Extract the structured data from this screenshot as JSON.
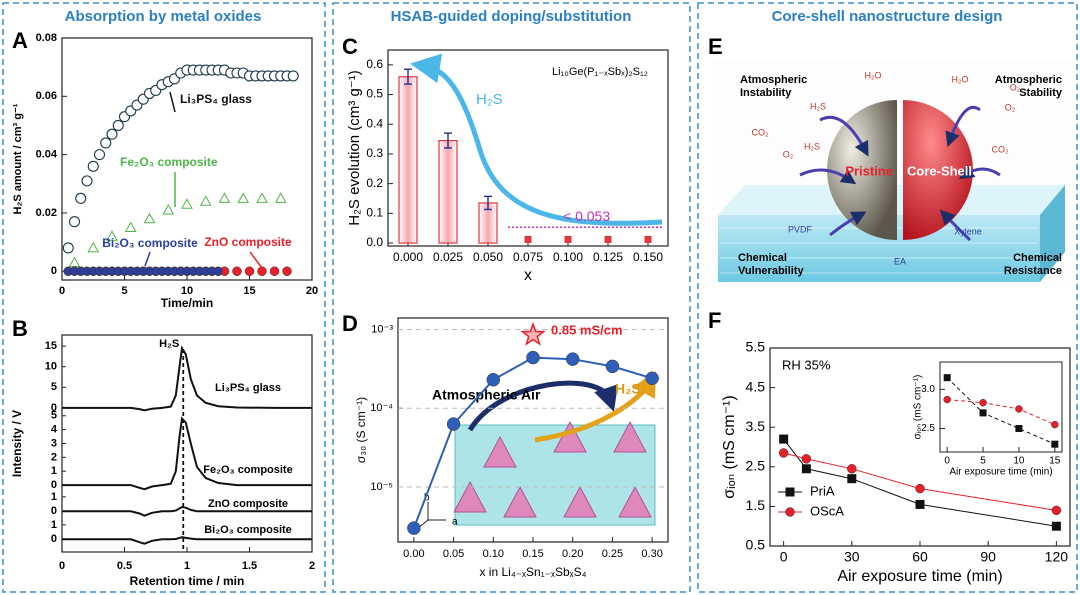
{
  "headers": [
    "Absorption by metal oxides",
    "HSAB-guided doping/substitution",
    "Core-shell nanostructure design"
  ],
  "chart_data": [
    {
      "type": "scatter",
      "label": "A",
      "xlabel": "Time/min",
      "ylabel": "H₂S amount / cm³ g⁻¹",
      "xlim": [
        0,
        20
      ],
      "ylim": [
        -0.003,
        0.08
      ],
      "xticks": [
        0,
        5,
        10,
        15,
        20
      ],
      "yticks": [
        0,
        0.02,
        0.04,
        0.06,
        0.08
      ],
      "series": [
        {
          "name": "Li₃PS₄ glass",
          "color": "#1d3b4a",
          "marker": "circle-open",
          "x": [
            0.5,
            1,
            1.5,
            2,
            2.5,
            3,
            3.5,
            4,
            4.5,
            5,
            5.5,
            6,
            6.5,
            7,
            7.5,
            8,
            8.5,
            9,
            9.5,
            10,
            10.5,
            11,
            11.5,
            12,
            12.5,
            13,
            13.5,
            14,
            14.5,
            15,
            15.5,
            16,
            16.5,
            17,
            17.5,
            18,
            18.5
          ],
          "values": [
            0.008,
            0.017,
            0.025,
            0.031,
            0.036,
            0.04,
            0.044,
            0.047,
            0.05,
            0.053,
            0.055,
            0.057,
            0.059,
            0.061,
            0.062,
            0.064,
            0.065,
            0.066,
            0.068,
            0.069,
            0.069,
            0.069,
            0.069,
            0.069,
            0.069,
            0.069,
            0.068,
            0.068,
            0.068,
            0.067,
            0.067,
            0.067,
            0.067,
            0.067,
            0.067,
            0.067,
            0.067
          ]
        },
        {
          "name": "Fe₂O₃ composite",
          "color": "#4fb548",
          "marker": "triangle-open",
          "x": [
            1,
            2.5,
            4,
            5.5,
            7,
            8.5,
            10,
            11.5,
            13,
            14.5,
            16,
            17.5
          ],
          "values": [
            0.003,
            0.008,
            0.012,
            0.015,
            0.018,
            0.021,
            0.023,
            0.024,
            0.025,
            0.025,
            0.025,
            0.025
          ]
        },
        {
          "name": "ZnO composite",
          "color": "#e8202a",
          "marker": "circle",
          "x": [
            0.5,
            1,
            1.5,
            2,
            2.5,
            3,
            3.5,
            4,
            4.5,
            5,
            5.5,
            6,
            6.5,
            7,
            7.5,
            8,
            8.5,
            9,
            9.5,
            10,
            10.5,
            11,
            11.5,
            12,
            12.5,
            13,
            14,
            15,
            16,
            17,
            18
          ],
          "values": [
            0,
            0,
            0,
            0,
            0,
            0,
            0,
            0,
            0,
            0,
            0,
            0,
            0,
            0,
            0,
            0,
            0,
            0,
            0,
            0,
            0,
            0,
            0,
            0,
            0,
            0,
            0,
            0,
            0,
            0,
            0
          ]
        },
        {
          "name": "Bi₂O₃ composite",
          "color": "#2b3f9e",
          "marker": "circle",
          "x": [
            0.5,
            1,
            1.5,
            2,
            2.5,
            3,
            3.5,
            4,
            4.5,
            5,
            5.5,
            6,
            6.5,
            7,
            7.5,
            8,
            8.5,
            9,
            9.5,
            10,
            10.5,
            11,
            11.5,
            12,
            12.5
          ],
          "values": [
            0,
            0,
            0,
            0,
            0,
            0,
            0,
            0,
            0,
            0,
            0,
            0,
            0,
            0,
            0,
            0,
            0,
            0,
            0,
            0,
            0,
            0,
            0,
            0,
            0
          ]
        }
      ]
    },
    {
      "type": "traces",
      "label": "B",
      "xlabel": "Retention time / min",
      "ylabel": "Intensity / V",
      "xlim": [
        0,
        2
      ],
      "xticks": [
        0,
        0.5,
        1,
        1.5,
        2
      ],
      "marker_line": {
        "value": 0.97,
        "label": "H₂S"
      },
      "x": [
        0,
        0.3,
        0.55,
        0.62,
        0.66,
        0.72,
        0.8,
        0.87,
        0.91,
        0.94,
        0.96,
        0.99,
        1.03,
        1.08,
        1.15,
        1.25,
        1.4,
        1.7,
        2
      ],
      "traces": [
        {
          "name": "Li₃PS₄ glass",
          "ylim": [
            -1,
            16
          ],
          "yticks": [
            0,
            5,
            10,
            15
          ],
          "values": [
            0,
            0,
            0,
            -0.3,
            -0.6,
            -0.2,
            0,
            0.3,
            3,
            10,
            14.5,
            13,
            7,
            3,
            1.2,
            0.4,
            0.1,
            0,
            0
          ]
        },
        {
          "name": "Fe₂O₃ composite",
          "ylim": [
            -0.5,
            5.2
          ],
          "yticks": [
            0,
            1,
            2,
            3,
            4,
            5
          ],
          "values": [
            0,
            0,
            0,
            -0.2,
            -0.3,
            -0.1,
            0,
            0.1,
            1,
            3.5,
            4.8,
            4.5,
            3,
            1.3,
            0.5,
            0.15,
            0,
            0,
            0
          ]
        },
        {
          "name": "ZnO composite",
          "ylim": [
            -0.6,
            1.2
          ],
          "yticks": [
            0,
            1
          ],
          "values": [
            0,
            0,
            0,
            -0.15,
            -0.3,
            -0.1,
            0,
            0,
            0.05,
            0.2,
            0.3,
            0.25,
            0.1,
            0,
            0,
            0,
            0,
            0,
            0
          ]
        },
        {
          "name": "Bi₂O₃ composite",
          "ylim": [
            -0.6,
            1.2
          ],
          "yticks": [
            0,
            1
          ],
          "values": [
            0,
            0,
            0,
            -0.2,
            -0.3,
            -0.1,
            0,
            0,
            0.02,
            0.1,
            0.15,
            0.1,
            0.05,
            0,
            0,
            0,
            0,
            0,
            0
          ]
        }
      ]
    },
    {
      "type": "bar",
      "label": "C",
      "xlabel": "x",
      "ylabel": "H₂S evolution (cm³ g⁻¹)",
      "compound": "Li₁₀Ge(P₁₋ₓSbₓ)₂S₁₂",
      "arrow_label": "H₂S",
      "categories": [
        "0.000",
        "0.025",
        "0.050",
        "0.075",
        "0.100",
        "0.125",
        "0.150"
      ],
      "values": [
        0.56,
        0.345,
        0.135,
        0,
        0,
        0,
        0
      ],
      "errors": [
        0.025,
        0.025,
        0.022,
        null,
        null,
        null,
        null
      ],
      "color": "#e0383f",
      "ylim": [
        -0.01,
        0.65
      ],
      "yticks": [
        {
          "value": 0,
          "label": "0.0"
        },
        0.1,
        0.2,
        0.3,
        0.4,
        0.5,
        0.6
      ],
      "threshold": {
        "value": 0.053,
        "label": "< 0.053",
        "color": "#c52fc0"
      }
    },
    {
      "type": "line",
      "label": "D",
      "xlabel": "x in Li₄₋ₓSn₁₋ₓSbₓS₄",
      "ylabel": "σ₃₀ (S cm⁻¹)",
      "log_y": true,
      "grid": true,
      "x": [
        0,
        0.05,
        0.1,
        0.15,
        0.2,
        0.25,
        0.3
      ],
      "series": [
        {
          "color": "#2f5fb8",
          "marker": "circle",
          "values": [
            3e-06,
            6.3e-05,
            0.00023,
            0.00044,
            0.00042,
            0.00034,
            0.00024
          ]
        }
      ],
      "xlim": [
        -0.02,
        0.32
      ],
      "ylim": [
        2e-06,
        0.0014
      ],
      "xticks": [
        {
          "value": 0,
          "label": "0.00"
        },
        {
          "value": 0.05,
          "label": "0.05"
        },
        {
          "value": 0.1,
          "label": "0.10"
        },
        {
          "value": 0.15,
          "label": "0.15"
        },
        {
          "value": 0.2,
          "label": "0.20"
        },
        {
          "value": 0.25,
          "label": "0.25"
        },
        {
          "value": 0.3,
          "label": "0.30"
        }
      ],
      "yticks": [
        {
          "value": 1e-05,
          "label": "10⁻⁵"
        },
        {
          "value": 0.0001,
          "label": "10⁻⁴"
        },
        {
          "value": 0.001,
          "label": "10⁻³"
        }
      ],
      "highlight": {
        "x": 0.15,
        "value": 0.00085,
        "label": "0.85 mS/cm",
        "color": "#e8202a"
      },
      "annotations": [
        "Atmospheric Air",
        "H₂S↓"
      ],
      "crystal_axes": [
        "b",
        "a",
        "c"
      ]
    },
    {
      "type": "line",
      "label": "F",
      "xlabel": "Air exposure time (min)",
      "ylabel": "σᵢₒₙ (mS cm⁻¹)",
      "annotation": "RH 35%",
      "legend": "lower left",
      "x": [
        0,
        10,
        30,
        60,
        120
      ],
      "series": [
        {
          "name": "PriA",
          "color": "#111111",
          "marker": "square",
          "values": [
            3.2,
            2.45,
            2.2,
            1.55,
            1.0
          ]
        },
        {
          "name": "OScA",
          "color": "#e8202a",
          "marker": "circle",
          "values": [
            2.85,
            2.7,
            2.45,
            1.95,
            1.4
          ]
        }
      ],
      "xlim": [
        -6,
        126
      ],
      "ylim": [
        0.5,
        5.5
      ],
      "xticks": [
        0,
        30,
        60,
        90,
        120
      ],
      "yticks": [
        0.5,
        1.5,
        2.5,
        3.5,
        4.5,
        5.5
      ]
    },
    {
      "type": "line",
      "xlabel": "Air exposure time (min)",
      "ylabel": "σᵢₒₙ (mS cm⁻¹)",
      "dashed": true,
      "x": [
        0,
        5,
        10,
        15
      ],
      "series": [
        {
          "color": "#111111",
          "marker": "square",
          "values": [
            3.15,
            2.7,
            2.5,
            2.3
          ]
        },
        {
          "color": "#e8202a",
          "marker": "circle",
          "values": [
            2.87,
            2.83,
            2.75,
            2.55
          ]
        }
      ],
      "xlim": [
        -1,
        16
      ],
      "ylim": [
        2.2,
        3.35
      ],
      "xticks": [
        0,
        5,
        10,
        15
      ],
      "yticks": [
        2.5,
        {
          "value": 3,
          "label": "3.0"
        }
      ]
    }
  ],
  "panel_e": {
    "label": "E",
    "corner_labels": [
      [
        "Atmospheric",
        "Instability"
      ],
      [
        "Atmospheric",
        "Stability"
      ],
      [
        "Chemical",
        "Vulnerability"
      ],
      [
        "Chemical",
        "Resistance"
      ]
    ],
    "sphere_labels": [
      "Pristine",
      "Core-Shell"
    ],
    "molecule_labels": [
      "H₂O",
      "H₂O",
      "O₂",
      "CO₂",
      "H₂S",
      "O₂",
      "CO₂",
      "H₂S",
      "O₂",
      "PVDF",
      "Xylene",
      "EA"
    ]
  }
}
